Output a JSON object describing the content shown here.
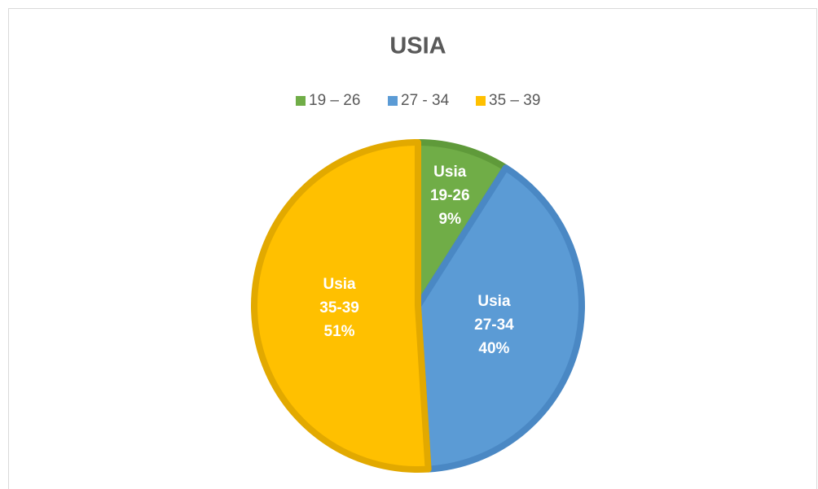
{
  "chart_data": {
    "type": "pie",
    "title": "USIA",
    "categories": [
      "19 – 26",
      "27 - 34",
      "35 – 39"
    ],
    "values": [
      9,
      40,
      51
    ],
    "value_labels": [
      [
        "Usia",
        "19-26",
        "9%"
      ],
      [
        "Usia",
        "27-34",
        "40%"
      ],
      [
        "Usia",
        "35-39",
        "51%"
      ]
    ],
    "colors": [
      "#70ad47",
      "#5b9bd5",
      "#ffc000"
    ],
    "edge_colors": [
      "#5f9a3a",
      "#4a88c4",
      "#e2a900"
    ],
    "legend": "top"
  }
}
